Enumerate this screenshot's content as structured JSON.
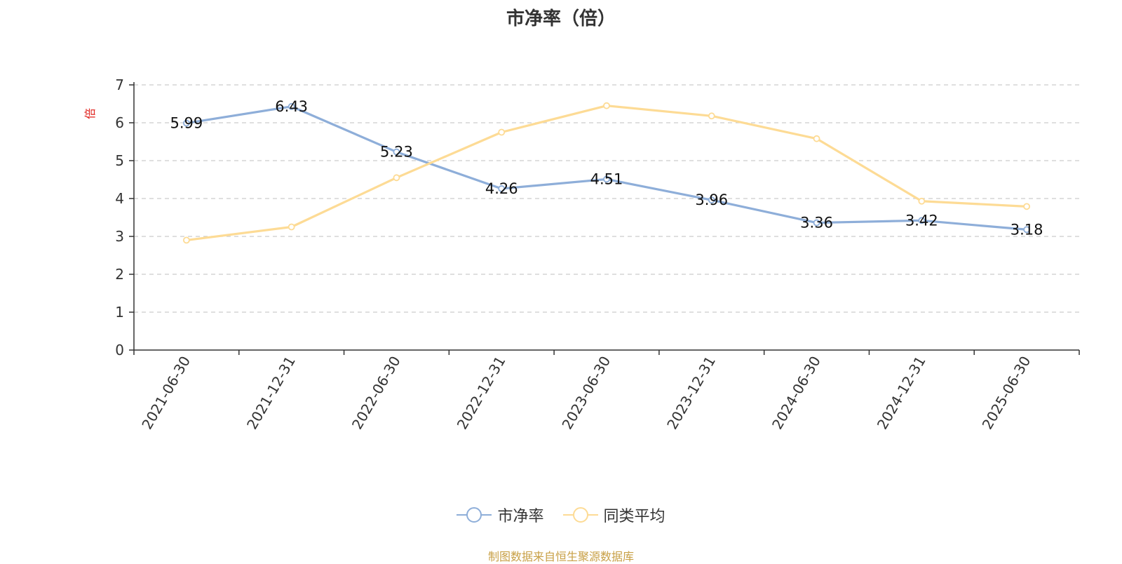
{
  "chart_data": {
    "type": "line",
    "title": "市净率（倍）",
    "ylabel": "倍",
    "ylim": [
      0,
      7
    ],
    "yticks": [
      0,
      1,
      2,
      3,
      4,
      5,
      6,
      7
    ],
    "grid": true,
    "legend_position": "bottom",
    "categories": [
      "2021-06-30",
      "2021-12-31",
      "2022-06-30",
      "2022-12-31",
      "2023-06-30",
      "2023-12-31",
      "2024-06-30",
      "2024-12-31",
      "2025-06-30"
    ],
    "series": [
      {
        "name": "市净率",
        "color": "#8eaed9",
        "values": [
          5.99,
          6.43,
          5.23,
          4.26,
          4.51,
          3.96,
          3.36,
          3.42,
          3.18
        ],
        "labels": [
          "5.99",
          "6.43",
          "5.23",
          "4.26",
          "4.51",
          "3.96",
          "3.36",
          "3.42",
          "3.18"
        ]
      },
      {
        "name": "同类平均",
        "color": "#fddb95",
        "values": [
          2.9,
          3.25,
          4.55,
          5.75,
          6.45,
          6.18,
          5.58,
          3.93,
          3.79
        ]
      }
    ]
  },
  "source_note": "制图数据来自恒生聚源数据库"
}
